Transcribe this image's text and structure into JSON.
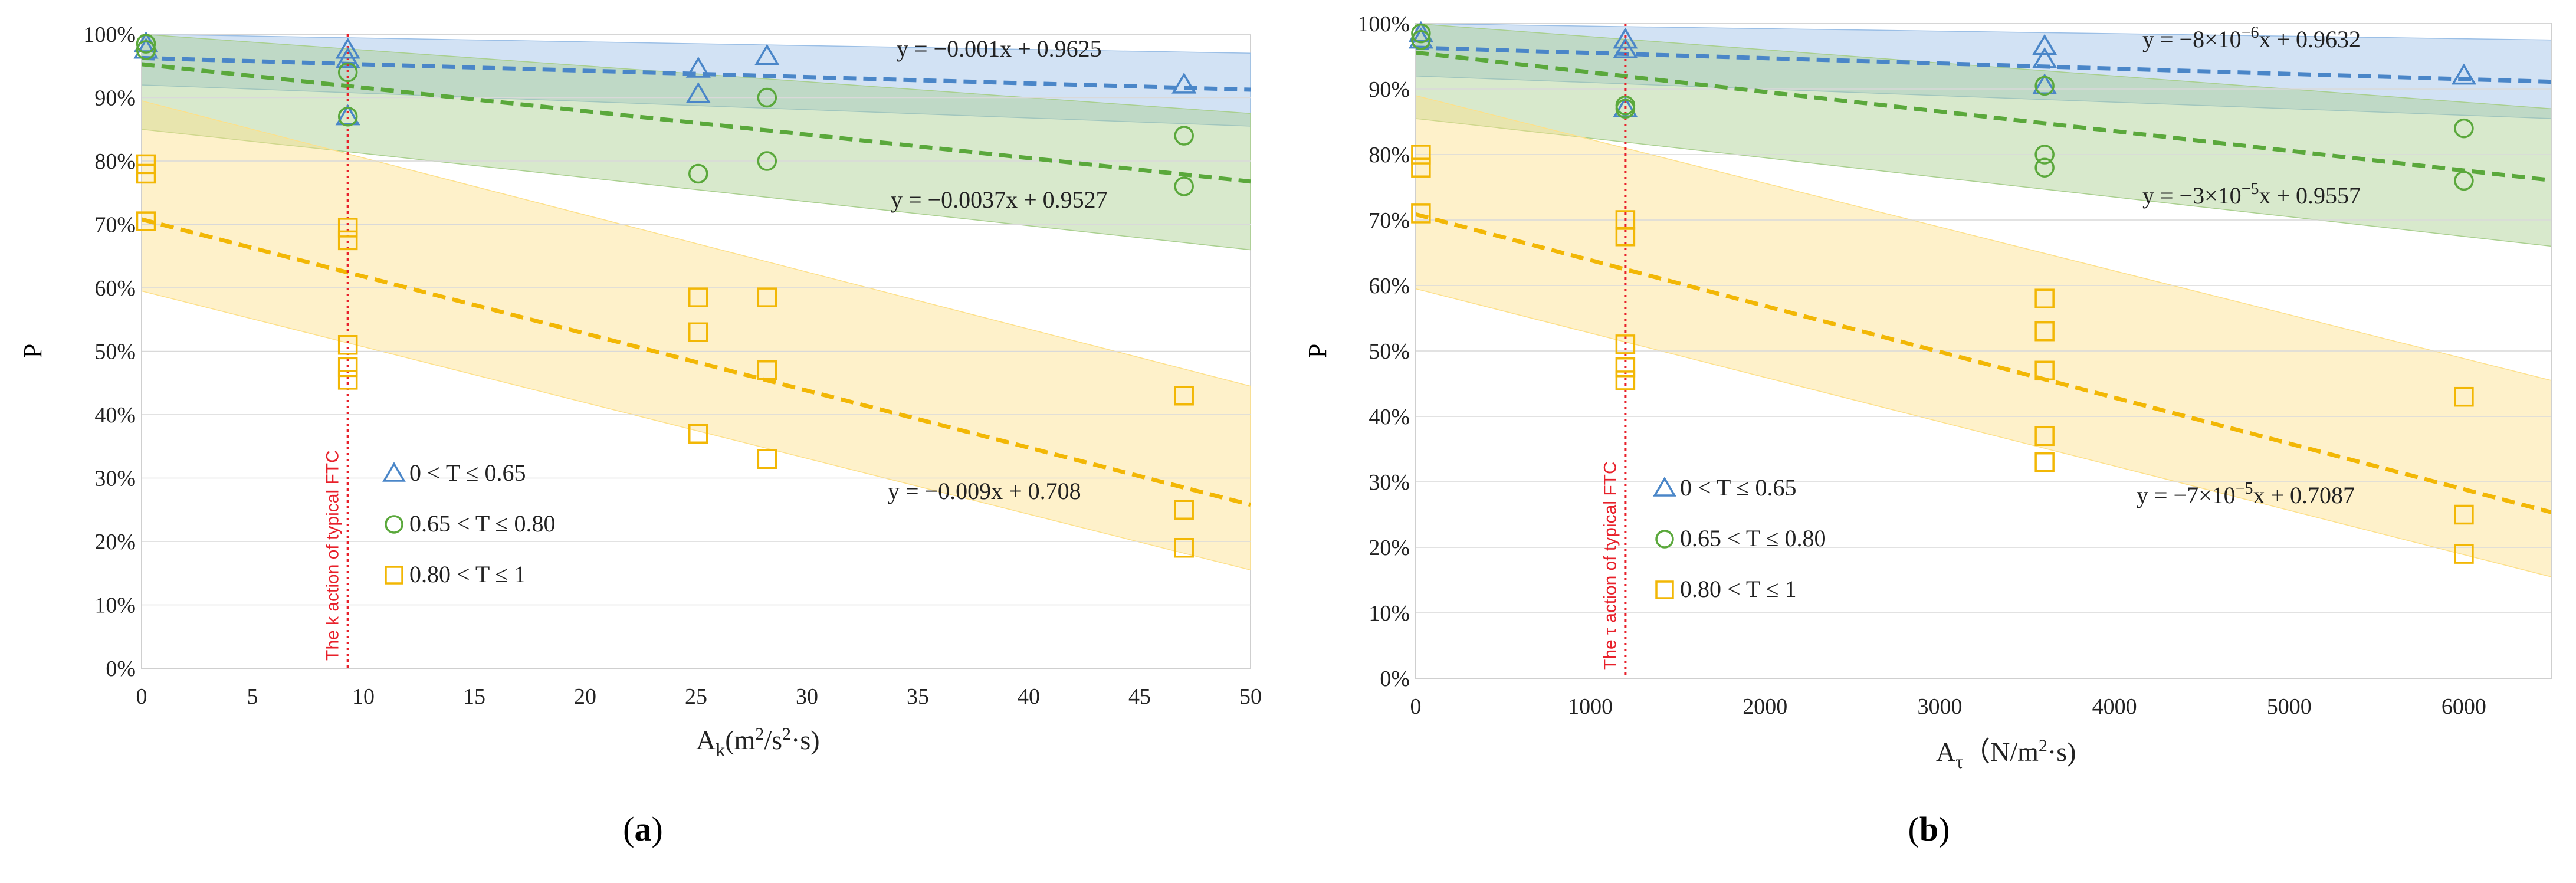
{
  "colors": {
    "blue": "#4a86c8",
    "green": "#5aa83b",
    "yellow": "#f2b705",
    "red": "#e8202a",
    "band_blue": "#9bbfe6",
    "band_green": "#a9cf8e",
    "band_yellow": "#fde08a",
    "axis": "#222222",
    "grid": "#d9d9d9"
  },
  "chart_data": [
    {
      "id": "a",
      "type": "scatter",
      "panel_label": "a",
      "ylabel": "P",
      "xlabel": {
        "base": "A",
        "sub": "k",
        "unit_pre": "(m",
        "sup1": "2",
        "unit_mid": "/s",
        "sup2": "2",
        "unit_post": "·s)"
      },
      "xlim": [
        0,
        50
      ],
      "ylim": [
        0,
        1
      ],
      "x_ticks": [
        0,
        5,
        10,
        15,
        20,
        25,
        30,
        35,
        40,
        45,
        50
      ],
      "x_tick_labels": [
        "0",
        "5",
        "10",
        "15",
        "20",
        "25",
        "30",
        "35",
        "40",
        "45",
        "50"
      ],
      "y_ticks": [
        0,
        0.1,
        0.2,
        0.3,
        0.4,
        0.5,
        0.6,
        0.7,
        0.8,
        0.9,
        1.0
      ],
      "y_tick_labels": [
        "0%",
        "10%",
        "20%",
        "30%",
        "40%",
        "50%",
        "60%",
        "70%",
        "80%",
        "90%",
        "100%"
      ],
      "ftc": {
        "x": 9.3,
        "label": "The k action of typical FTC"
      },
      "legend": [
        {
          "symbol": "triangle",
          "color_key": "blue",
          "text": "0 < T ≤ 0.65"
        },
        {
          "symbol": "circle",
          "color_key": "green",
          "text": "0.65 < T ≤ 0.80"
        },
        {
          "symbol": "square",
          "color_key": "yellow",
          "text": "0.80 < T ≤ 1"
        }
      ],
      "series": [
        {
          "name": "0 < T ≤ 0.65",
          "symbol": "triangle",
          "color_key": "blue",
          "band_key": "band_blue",
          "points": [
            [
              0.2,
              0.985
            ],
            [
              0.2,
              0.975
            ],
            [
              9.3,
              0.975
            ],
            [
              9.3,
              0.96
            ],
            [
              9.3,
              0.87
            ],
            [
              25.1,
              0.945
            ],
            [
              25.1,
              0.905
            ],
            [
              28.2,
              0.965
            ],
            [
              47,
              0.92
            ]
          ],
          "fit": {
            "slope": -0.001,
            "intercept": 0.9625,
            "equation": "y = −0.001x + 0.9625"
          },
          "band": {
            "upper": [
              [
                0,
                1.0
              ],
              [
                50,
                0.97
              ]
            ],
            "lower": [
              [
                0,
                0.92
              ],
              [
                50,
                0.855
              ]
            ]
          }
        },
        {
          "name": "0.65 < T ≤ 0.80",
          "symbol": "circle",
          "color_key": "green",
          "band_key": "band_green",
          "points": [
            [
              0.2,
              0.985
            ],
            [
              0.2,
              0.975
            ],
            [
              9.3,
              0.94
            ],
            [
              9.3,
              0.87
            ],
            [
              25.1,
              0.78
            ],
            [
              28.2,
              0.9
            ],
            [
              28.2,
              0.8
            ],
            [
              47,
              0.84
            ],
            [
              47,
              0.76
            ]
          ],
          "fit": {
            "slope": -0.0037,
            "intercept": 0.9527,
            "equation": "y = −0.0037x + 0.9527"
          },
          "band": {
            "upper": [
              [
                0,
                1.0
              ],
              [
                50,
                0.875
              ]
            ],
            "lower": [
              [
                0,
                0.85
              ],
              [
                50,
                0.66
              ]
            ]
          }
        },
        {
          "name": "0.80 < T ≤ 1",
          "symbol": "square",
          "color_key": "yellow",
          "band_key": "band_yellow",
          "points": [
            [
              0.2,
              0.795
            ],
            [
              0.2,
              0.78
            ],
            [
              0.2,
              0.705
            ],
            [
              9.3,
              0.695
            ],
            [
              9.3,
              0.675
            ],
            [
              9.3,
              0.51
            ],
            [
              9.3,
              0.475
            ],
            [
              9.3,
              0.455
            ],
            [
              25.1,
              0.585
            ],
            [
              25.1,
              0.53
            ],
            [
              25.1,
              0.37
            ],
            [
              28.2,
              0.585
            ],
            [
              28.2,
              0.47
            ],
            [
              28.2,
              0.33
            ],
            [
              47,
              0.43
            ],
            [
              47,
              0.25
            ],
            [
              47,
              0.19
            ]
          ],
          "fit": {
            "slope": -0.009,
            "intercept": 0.708,
            "equation": "y = −0.009x + 0.708"
          },
          "band": {
            "upper": [
              [
                0,
                0.895
              ],
              [
                50,
                0.445
              ]
            ],
            "lower": [
              [
                0,
                0.595
              ],
              [
                50,
                0.155
              ]
            ]
          }
        }
      ]
    },
    {
      "id": "b",
      "type": "scatter",
      "panel_label": "b",
      "ylabel": "P",
      "xlabel": {
        "base": "A",
        "sub": "τ",
        "unit_pre": "（N/m",
        "sup1": "2",
        "unit_mid": "·s)",
        "sup2": "",
        "unit_post": ""
      },
      "xlim": [
        0,
        6500
      ],
      "ylim": [
        0,
        1
      ],
      "x_ticks": [
        0,
        1000,
        2000,
        3000,
        4000,
        5000,
        6000
      ],
      "x_tick_labels": [
        "0",
        "1000",
        "2000",
        "3000",
        "4000",
        "5000",
        "6000"
      ],
      "y_ticks": [
        0,
        0.1,
        0.2,
        0.3,
        0.4,
        0.5,
        0.6,
        0.7,
        0.8,
        0.9,
        1.0
      ],
      "y_tick_labels": [
        "0%",
        "10%",
        "20%",
        "30%",
        "40%",
        "50%",
        "60%",
        "70%",
        "80%",
        "90%",
        "100%"
      ],
      "ftc": {
        "x": 1200,
        "label": "The τ action of typical FTC"
      },
      "legend": [
        {
          "symbol": "triangle",
          "color_key": "blue",
          "text": "0 < T ≤ 0.65"
        },
        {
          "symbol": "circle",
          "color_key": "green",
          "text": "0.65 < T ≤ 0.80"
        },
        {
          "symbol": "square",
          "color_key": "yellow",
          "text": "0.80 < T ≤ 1"
        }
      ],
      "series": [
        {
          "name": "0 < T ≤ 0.65",
          "symbol": "triangle",
          "color_key": "blue",
          "band_key": "band_blue",
          "points": [
            [
              30,
              0.985
            ],
            [
              30,
              0.975
            ],
            [
              1200,
              0.975
            ],
            [
              1200,
              0.96
            ],
            [
              1200,
              0.87
            ],
            [
              3600,
              0.965
            ],
            [
              3600,
              0.945
            ],
            [
              3600,
              0.905
            ],
            [
              6000,
              0.92
            ]
          ],
          "fit": {
            "slope": -8e-06,
            "intercept": 0.9632,
            "equation": {
              "pre": "y = −8×10",
              "sup": "−6",
              "post": "x + 0.9632"
            }
          },
          "band": {
            "upper": [
              [
                0,
                1.0
              ],
              [
                6500,
                0.975
              ]
            ],
            "lower": [
              [
                0,
                0.92
              ],
              [
                6500,
                0.855
              ]
            ]
          }
        },
        {
          "name": "0.65 < T ≤ 0.80",
          "symbol": "circle",
          "color_key": "green",
          "band_key": "band_green",
          "points": [
            [
              30,
              0.985
            ],
            [
              30,
              0.975
            ],
            [
              1200,
              0.875
            ],
            [
              1200,
              0.87
            ],
            [
              3600,
              0.905
            ],
            [
              3600,
              0.8
            ],
            [
              3600,
              0.78
            ],
            [
              6000,
              0.84
            ],
            [
              6000,
              0.76
            ]
          ],
          "fit": {
            "slope": -3e-05,
            "intercept": 0.9557,
            "equation": {
              "pre": "y = −3×10",
              "sup": "−5",
              "post": "x + 0.9557"
            }
          },
          "band": {
            "upper": [
              [
                0,
                1.0
              ],
              [
                6500,
                0.87
              ]
            ],
            "lower": [
              [
                0,
                0.855
              ],
              [
                6500,
                0.66
              ]
            ]
          }
        },
        {
          "name": "0.80 < T ≤ 1",
          "symbol": "square",
          "color_key": "yellow",
          "band_key": "band_yellow",
          "points": [
            [
              30,
              0.8
            ],
            [
              30,
              0.78
            ],
            [
              30,
              0.71
            ],
            [
              1200,
              0.7
            ],
            [
              1200,
              0.675
            ],
            [
              1200,
              0.51
            ],
            [
              1200,
              0.475
            ],
            [
              1200,
              0.455
            ],
            [
              3600,
              0.58
            ],
            [
              3600,
              0.53
            ],
            [
              3600,
              0.47
            ],
            [
              3600,
              0.37
            ],
            [
              3600,
              0.33
            ],
            [
              6000,
              0.43
            ],
            [
              6000,
              0.25
            ],
            [
              6000,
              0.19
            ]
          ],
          "fit": {
            "slope": -7e-05,
            "intercept": 0.7087,
            "equation": {
              "pre": "y = −7×10",
              "sup": "−5",
              "post": "x + 0.7087"
            }
          },
          "band": {
            "upper": [
              [
                0,
                0.89
              ],
              [
                6500,
                0.455
              ]
            ],
            "lower": [
              [
                0,
                0.595
              ],
              [
                6500,
                0.155
              ]
            ]
          }
        }
      ]
    }
  ]
}
